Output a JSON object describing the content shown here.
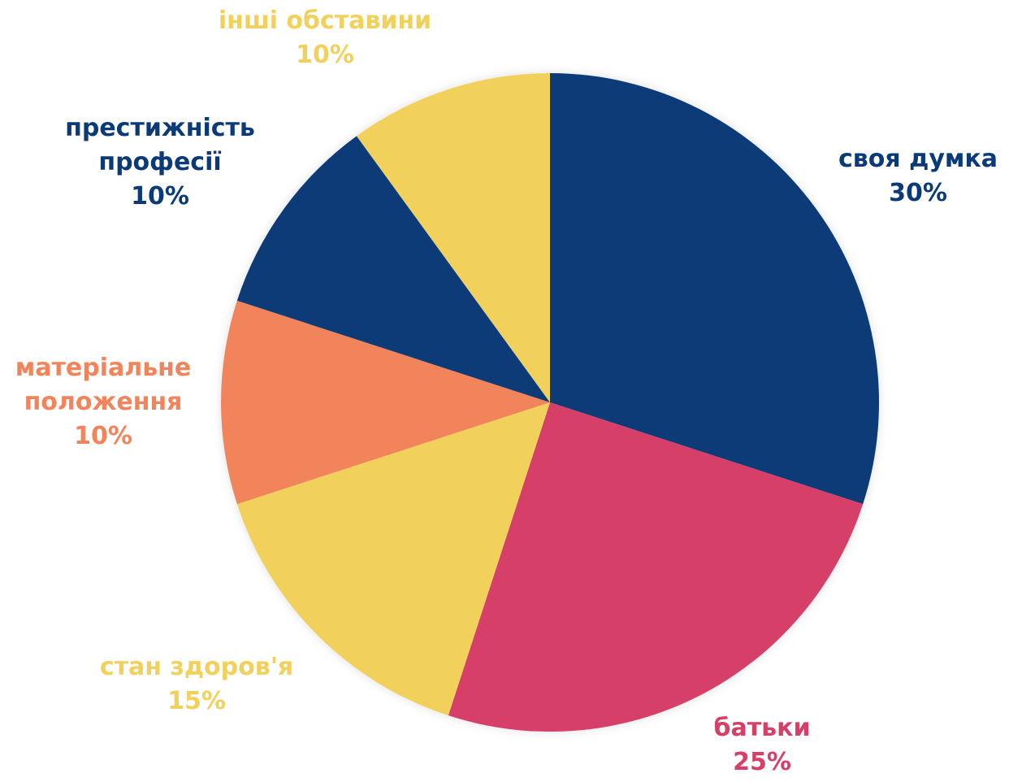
{
  "chart_data": {
    "type": "pie",
    "title": "",
    "slices": [
      {
        "label": [
          "своя думка"
        ],
        "value": 30,
        "value_label": "30%",
        "color": "#0B3A78"
      },
      {
        "label": [
          "батьки"
        ],
        "value": 25,
        "value_label": "25%",
        "color": "#D63F67"
      },
      {
        "label": [
          "стан здоров'я"
        ],
        "value": 15,
        "value_label": "15%",
        "color": "#F1D15C"
      },
      {
        "label": [
          "матеріальне",
          "положення"
        ],
        "value": 10,
        "value_label": "10%",
        "color": "#F2845C"
      },
      {
        "label": [
          "престижність",
          "професії"
        ],
        "value": 10,
        "value_label": "10%",
        "color": "#0B3A78"
      },
      {
        "label": [
          "інші обставини"
        ],
        "value": 10,
        "value_label": "10%",
        "color": "#F1D15C"
      }
    ]
  }
}
